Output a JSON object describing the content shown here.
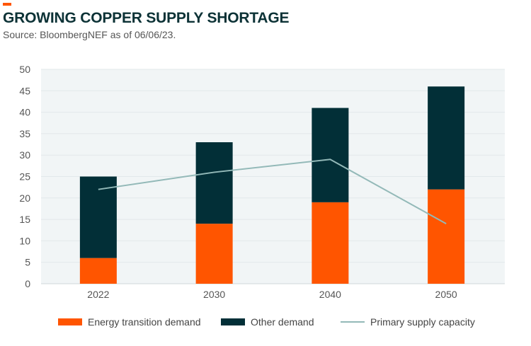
{
  "title": "GROWING COPPER SUPPLY SHORTAGE",
  "subtitle": "Source: BloombergNEF as of 06/06/23.",
  "chart_data": {
    "type": "bar",
    "stacked": true,
    "categories": [
      "2022",
      "2030",
      "2040",
      "2050"
    ],
    "series": [
      {
        "name": "Energy transition demand",
        "type": "bar",
        "color": "#ff5500",
        "values": [
          6,
          14,
          19,
          22
        ]
      },
      {
        "name": "Other demand",
        "type": "bar",
        "color": "#022f37",
        "values": [
          19,
          19,
          22,
          24
        ]
      },
      {
        "name": "Primary supply capacity",
        "type": "line",
        "color": "#93b9b8",
        "values": [
          22,
          26,
          29,
          14
        ]
      }
    ],
    "ylim": [
      0,
      50
    ],
    "yticks": [
      0,
      5,
      10,
      15,
      20,
      25,
      30,
      35,
      40,
      45,
      50
    ],
    "grid": true,
    "legend": "bottom"
  }
}
